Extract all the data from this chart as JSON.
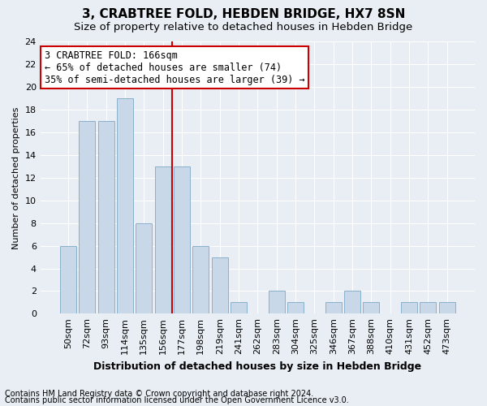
{
  "title": "3, CRABTREE FOLD, HEBDEN BRIDGE, HX7 8SN",
  "subtitle": "Size of property relative to detached houses in Hebden Bridge",
  "xlabel": "Distribution of detached houses by size in Hebden Bridge",
  "ylabel": "Number of detached properties",
  "categories": [
    "50sqm",
    "72sqm",
    "93sqm",
    "114sqm",
    "135sqm",
    "156sqm",
    "177sqm",
    "198sqm",
    "219sqm",
    "241sqm",
    "262sqm",
    "283sqm",
    "304sqm",
    "325sqm",
    "346sqm",
    "367sqm",
    "388sqm",
    "410sqm",
    "431sqm",
    "452sqm",
    "473sqm"
  ],
  "values": [
    6,
    17,
    17,
    19,
    8,
    13,
    13,
    6,
    5,
    1,
    0,
    2,
    1,
    0,
    1,
    2,
    1,
    0,
    1,
    1,
    1
  ],
  "bar_color": "#c8d8e8",
  "bar_edge_color": "#8ab0cc",
  "vline_index": 6,
  "vline_color": "#cc0000",
  "ylim": [
    0,
    24
  ],
  "yticks": [
    0,
    2,
    4,
    6,
    8,
    10,
    12,
    14,
    16,
    18,
    20,
    22,
    24
  ],
  "annotation_line1": "3 CRABTREE FOLD: 166sqm",
  "annotation_line2": "← 65% of detached houses are smaller (74)",
  "annotation_line3": "35% of semi-detached houses are larger (39) →",
  "annotation_box_color": "#ffffff",
  "annotation_box_edge": "#cc0000",
  "footnote1": "Contains HM Land Registry data © Crown copyright and database right 2024.",
  "footnote2": "Contains public sector information licensed under the Open Government Licence v3.0.",
  "background_color": "#e8eef4",
  "grid_color": "#ffffff",
  "title_fontsize": 11,
  "subtitle_fontsize": 9.5,
  "xlabel_fontsize": 9,
  "ylabel_fontsize": 8,
  "tick_fontsize": 8,
  "annotation_fontsize": 8.5,
  "footnote_fontsize": 7
}
